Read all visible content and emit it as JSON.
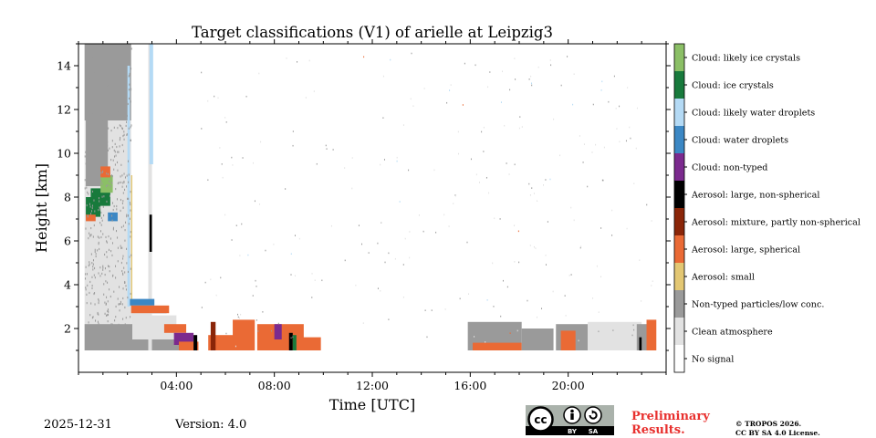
{
  "chart_data": {
    "type": "heatmap",
    "title": "Target classifications (V1) of arielle at Leipzig3",
    "xlabel": "Time [UTC]",
    "ylabel": "Height [km]",
    "xlim": [
      0,
      24
    ],
    "ylim": [
      0,
      15
    ],
    "x_ticks": [
      {
        "value": 4,
        "label": "04:00"
      },
      {
        "value": 8,
        "label": "08:00"
      },
      {
        "value": 12,
        "label": "12:00"
      },
      {
        "value": 16,
        "label": "16:00"
      },
      {
        "value": 20,
        "label": "20:00"
      }
    ],
    "y_ticks": [
      {
        "value": 2,
        "label": "2"
      },
      {
        "value": 4,
        "label": "4"
      },
      {
        "value": 6,
        "label": "6"
      },
      {
        "value": 8,
        "label": "8"
      },
      {
        "value": 10,
        "label": "10"
      },
      {
        "value": 12,
        "label": "12"
      },
      {
        "value": 14,
        "label": "14"
      }
    ],
    "classes": [
      {
        "label": "No signal",
        "color": "#ffffff"
      },
      {
        "label": "Clean atmosphere",
        "color": "#e2e2e2"
      },
      {
        "label": "Non-typed particles/low conc.",
        "color": "#9a9a9a"
      },
      {
        "label": "Aerosol: small",
        "color": "#e3c773"
      },
      {
        "label": "Aerosol: large, spherical",
        "color": "#ea6a35"
      },
      {
        "label": "Aerosol: mixture, partly non-spherical",
        "color": "#8a2508"
      },
      {
        "label": "Aerosol: large, non-spherical",
        "color": "#000000"
      },
      {
        "label": "Cloud: non-typed",
        "color": "#7b2a8e"
      },
      {
        "label": "Cloud: water droplets",
        "color": "#3b87c4"
      },
      {
        "label": "Cloud: likely water droplets",
        "color": "#b4daf5"
      },
      {
        "label": "Cloud: ice crystals",
        "color": "#187a3c"
      },
      {
        "label": "Cloud: likely ice crystals",
        "color": "#8bbf66"
      }
    ],
    "regions": [
      {
        "class": 1,
        "x0": 0.25,
        "x1": 2.15,
        "y0": 1.0,
        "y1": 15.0
      },
      {
        "class": 2,
        "x0": 0.25,
        "x1": 2.15,
        "y0": 11.5,
        "y1": 15.0
      },
      {
        "class": 2,
        "x0": 0.3,
        "x1": 1.2,
        "y0": 8.5,
        "y1": 11.5
      },
      {
        "class": 1,
        "x0": 2.15,
        "x1": 2.85,
        "y0": 1.0,
        "y1": 3.2
      },
      {
        "class": 2,
        "x0": 0.25,
        "x1": 4.5,
        "y0": 1.0,
        "y1": 1.5
      },
      {
        "class": 2,
        "x0": 0.25,
        "x1": 2.2,
        "y0": 1.5,
        "y1": 2.2
      },
      {
        "class": 1,
        "x0": 2.2,
        "x1": 4.0,
        "y0": 1.5,
        "y1": 2.6
      },
      {
        "class": 1,
        "x0": 2.85,
        "x1": 3.0,
        "y0": 1.0,
        "y1": 15.0
      },
      {
        "class": 9,
        "x0": 2.0,
        "x1": 2.1,
        "y0": 3.0,
        "y1": 14.0
      },
      {
        "class": 3,
        "x0": 2.15,
        "x1": 2.2,
        "y0": 3.0,
        "y1": 9.0
      },
      {
        "class": 9,
        "x0": 2.9,
        "x1": 3.05,
        "y0": 9.5,
        "y1": 15.0
      },
      {
        "class": 8,
        "x0": 2.1,
        "x1": 3.1,
        "y0": 3.05,
        "y1": 3.35
      },
      {
        "class": 8,
        "x0": 3.0,
        "x1": 3.6,
        "y0": 2.7,
        "y1": 3.0
      },
      {
        "class": 4,
        "x0": 2.15,
        "x1": 3.7,
        "y0": 2.7,
        "y1": 3.05
      },
      {
        "class": 4,
        "x0": 3.5,
        "x1": 4.4,
        "y0": 1.8,
        "y1": 2.2
      },
      {
        "class": 7,
        "x0": 3.9,
        "x1": 4.7,
        "y0": 1.25,
        "y1": 1.8
      },
      {
        "class": 4,
        "x0": 4.1,
        "x1": 4.9,
        "y0": 1.0,
        "y1": 1.4
      },
      {
        "class": 6,
        "x0": 4.7,
        "x1": 4.85,
        "y0": 1.0,
        "y1": 1.7
      },
      {
        "class": 6,
        "x0": 2.9,
        "x1": 3.0,
        "y0": 5.5,
        "y1": 7.2
      },
      {
        "class": 10,
        "x0": 0.3,
        "x1": 0.9,
        "y0": 7.1,
        "y1": 8.0
      },
      {
        "class": 10,
        "x0": 0.5,
        "x1": 1.3,
        "y0": 7.6,
        "y1": 8.4
      },
      {
        "class": 11,
        "x0": 0.9,
        "x1": 1.4,
        "y0": 8.2,
        "y1": 9.0
      },
      {
        "class": 4,
        "x0": 0.9,
        "x1": 1.3,
        "y0": 8.9,
        "y1": 9.4
      },
      {
        "class": 4,
        "x0": 0.3,
        "x1": 0.7,
        "y0": 6.9,
        "y1": 7.2
      },
      {
        "class": 8,
        "x0": 1.2,
        "x1": 1.6,
        "y0": 6.9,
        "y1": 7.3
      },
      {
        "class": 4,
        "x0": 5.3,
        "x1": 6.6,
        "y0": 1.0,
        "y1": 1.7
      },
      {
        "class": 4,
        "x0": 6.3,
        "x1": 7.2,
        "y0": 1.0,
        "y1": 2.4
      },
      {
        "class": 5,
        "x0": 5.4,
        "x1": 5.6,
        "y0": 1.0,
        "y1": 2.3
      },
      {
        "class": 4,
        "x0": 7.3,
        "x1": 9.2,
        "y0": 1.0,
        "y1": 2.2
      },
      {
        "class": 7,
        "x0": 8.0,
        "x1": 8.3,
        "y0": 1.5,
        "y1": 2.2
      },
      {
        "class": 6,
        "x0": 8.6,
        "x1": 8.75,
        "y0": 1.0,
        "y1": 1.8
      },
      {
        "class": 10,
        "x0": 8.75,
        "x1": 8.9,
        "y0": 1.0,
        "y1": 1.7
      },
      {
        "class": 4,
        "x0": 9.0,
        "x1": 9.9,
        "y0": 1.0,
        "y1": 1.6
      },
      {
        "class": 2,
        "x0": 15.9,
        "x1": 18.1,
        "y0": 1.0,
        "y1": 2.3
      },
      {
        "class": 4,
        "x0": 16.1,
        "x1": 18.1,
        "y0": 1.0,
        "y1": 1.35
      },
      {
        "class": 2,
        "x0": 18.1,
        "x1": 19.4,
        "y0": 1.0,
        "y1": 2.0
      },
      {
        "class": 2,
        "x0": 19.5,
        "x1": 20.8,
        "y0": 1.0,
        "y1": 2.2
      },
      {
        "class": 4,
        "x0": 19.7,
        "x1": 20.3,
        "y0": 1.0,
        "y1": 1.9
      },
      {
        "class": 1,
        "x0": 20.8,
        "x1": 23.0,
        "y0": 1.0,
        "y1": 2.3
      },
      {
        "class": 2,
        "x0": 22.8,
        "x1": 23.5,
        "y0": 1.0,
        "y1": 2.2
      },
      {
        "class": 4,
        "x0": 23.2,
        "x1": 23.6,
        "y0": 1.0,
        "y1": 2.4
      },
      {
        "class": 6,
        "x0": 22.9,
        "x1": 23.0,
        "y0": 1.0,
        "y1": 1.6
      }
    ]
  },
  "footer": {
    "date": "2025-12-31",
    "version": "Version: 4.0",
    "preliminary": [
      "Preliminary",
      "Results."
    ],
    "copyright": [
      "© TROPOS 2026.",
      "CC BY SA 4.0 License."
    ],
    "license_badge": {
      "cc": "cc",
      "by": "BY",
      "sa": "SA"
    }
  }
}
